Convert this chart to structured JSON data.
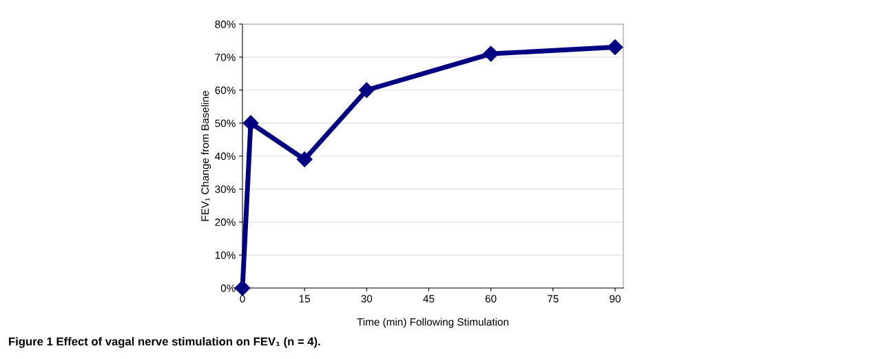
{
  "chart_data": {
    "type": "line",
    "xlabel": "Time (min) Following Stimulation",
    "ylabel": "FEV₁ Change from Baseline",
    "annotations": [
      "Figure 1 Effect of vagal nerve stimulation on FEV₁ (n = 4)."
    ],
    "x": [
      0,
      2,
      15,
      30,
      60,
      90
    ],
    "series": [
      {
        "color": "#000080",
        "values": [
          0,
          50,
          39,
          60,
          71,
          73
        ]
      }
    ],
    "xlim": [
      0,
      92
    ],
    "xticks": [
      0,
      15,
      30,
      45,
      60,
      75,
      90
    ],
    "ylim": [
      0,
      80
    ],
    "yticks": [
      {
        "value": 0,
        "label": "0%"
      },
      {
        "value": 10,
        "label": "10%"
      },
      {
        "value": 20,
        "label": "20%"
      },
      {
        "value": 30,
        "label": "30%"
      },
      {
        "value": 40,
        "label": "40%"
      },
      {
        "value": 50,
        "label": "50%"
      },
      {
        "value": 60,
        "label": "60%"
      },
      {
        "value": 70,
        "label": "70%"
      },
      {
        "value": 80,
        "label": "80%"
      }
    ],
    "grid": "y",
    "marker": "diamond",
    "line_style": "solid"
  }
}
